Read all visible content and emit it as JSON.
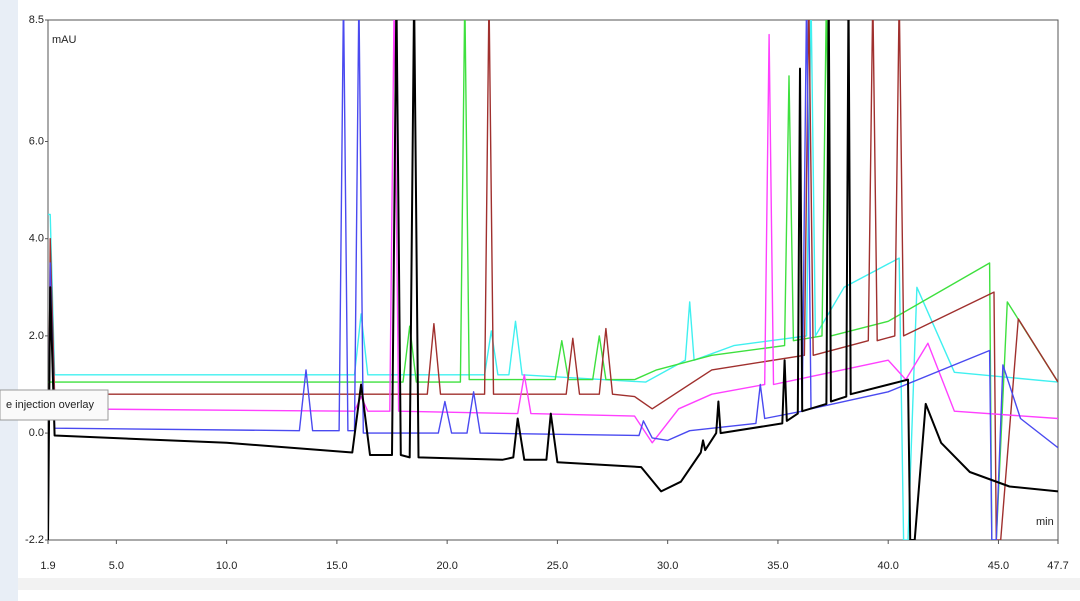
{
  "chart_data": {
    "type": "line",
    "y_label": "mAU",
    "x_label": "min",
    "tooltip": "e injection overlay",
    "xlim": [
      1.9,
      47.7
    ],
    "ylim": [
      -2.2,
      8.5
    ],
    "xticks": [
      1.9,
      {
        "value": 5,
        "label": "5.0"
      },
      {
        "value": 10,
        "label": "10.0"
      },
      {
        "value": 15,
        "label": "15.0"
      },
      {
        "value": 20,
        "label": "20.0"
      },
      {
        "value": 25,
        "label": "25.0"
      },
      {
        "value": 30,
        "label": "30.0"
      },
      {
        "value": 35,
        "label": "35.0"
      },
      {
        "value": 40,
        "label": "40.0"
      },
      {
        "value": 45,
        "label": "45.0"
      },
      47.7
    ],
    "yticks": [
      -2.2,
      {
        "value": 0,
        "label": "0.0"
      },
      {
        "value": 2,
        "label": "2.0"
      },
      {
        "value": 4,
        "label": "4.0"
      },
      {
        "value": 6,
        "label": "6.0"
      },
      8.5
    ],
    "series": [
      {
        "color": "#40f0f0",
        "x": [
          1.9,
          2.0,
          2.2,
          15.8,
          16.1,
          16.4,
          21.7,
          22.0,
          22.3,
          22.8,
          23.1,
          23.4,
          29.0,
          30.8,
          31.0,
          31.2,
          33.0,
          36.3,
          36.5,
          36.7,
          38.0,
          40.5,
          40.7,
          40.9,
          41.3,
          43.0,
          47.7
        ],
        "values": [
          4.5,
          4.5,
          1.2,
          1.2,
          2.45,
          1.2,
          1.2,
          2.1,
          1.2,
          1.2,
          2.3,
          1.2,
          1.05,
          1.5,
          2.7,
          1.5,
          1.8,
          2.0,
          9,
          2.0,
          3.0,
          3.6,
          -2.2,
          -2.2,
          3.0,
          1.25,
          1.05
        ]
      },
      {
        "color": "#3ee03e",
        "x": [
          1.9,
          2.2,
          18.0,
          18.3,
          18.6,
          20.6,
          20.8,
          21.0,
          24.9,
          25.2,
          25.5,
          26.6,
          26.9,
          27.2,
          28.5,
          29.5,
          32.0,
          35.3,
          35.5,
          35.7,
          37.0,
          37.2,
          37.4,
          40.0,
          44.6,
          44.7,
          44.9,
          45.4,
          47.7
        ],
        "values": [
          1.05,
          1.05,
          1.05,
          2.2,
          1.05,
          1.05,
          9,
          1.1,
          1.1,
          1.9,
          1.1,
          1.1,
          2.0,
          1.1,
          1.1,
          1.3,
          1.6,
          1.8,
          7.35,
          1.9,
          2.0,
          9,
          2.0,
          2.3,
          3.5,
          -2.2,
          -2.2,
          2.7,
          1.05
        ]
      },
      {
        "color": "#a0302e",
        "x": [
          1.9,
          2.0,
          2.2,
          19.1,
          19.4,
          19.7,
          21.7,
          21.9,
          22.1,
          25.4,
          25.7,
          26.0,
          26.9,
          27.2,
          27.5,
          28.5,
          29.3,
          32.0,
          36.2,
          36.4,
          36.6,
          39.1,
          39.3,
          39.5,
          40.3,
          40.5,
          40.7,
          44.8,
          44.9,
          45.1,
          45.9,
          47.7
        ],
        "values": [
          -2.2,
          4.0,
          0.8,
          0.8,
          2.25,
          0.8,
          0.8,
          9,
          0.8,
          0.8,
          1.95,
          0.8,
          0.8,
          2.15,
          0.8,
          0.75,
          0.5,
          1.3,
          1.6,
          9,
          1.6,
          1.9,
          9,
          1.9,
          2.0,
          9,
          2.0,
          2.9,
          -2.2,
          -2.2,
          2.35,
          1.05
        ]
      },
      {
        "color": "#ff40ff",
        "x": [
          1.9,
          2.2,
          15.8,
          16.1,
          16.4,
          17.4,
          17.6,
          17.8,
          23.2,
          23.5,
          23.8,
          28.5,
          29.3,
          30.5,
          32.0,
          34.4,
          34.6,
          34.8,
          40.0,
          40.8,
          41.8,
          43.0,
          47.7
        ],
        "values": [
          0.5,
          0.5,
          0.45,
          0.75,
          0.45,
          0.45,
          9,
          0.45,
          0.4,
          1.2,
          0.4,
          0.35,
          -0.2,
          0.5,
          0.8,
          1.0,
          8.2,
          1.0,
          1.5,
          1.1,
          1.85,
          0.45,
          0.3
        ]
      },
      {
        "color": "#4a4af0",
        "x": [
          1.9,
          2.0,
          2.2,
          13.3,
          13.6,
          13.9,
          15.1,
          15.3,
          15.5,
          15.8,
          16.0,
          16.2,
          19.6,
          19.9,
          20.2,
          20.9,
          21.2,
          21.5,
          28.7,
          28.9,
          29.3,
          30.0,
          31.0,
          34.0,
          34.2,
          34.4,
          36.1,
          36.3,
          36.5,
          40.0,
          44.6,
          44.7,
          44.9,
          45.2,
          46.0,
          47.7
        ],
        "values": [
          -2.2,
          3.5,
          0.1,
          0.05,
          1.3,
          0.05,
          0.05,
          9,
          0.05,
          0.05,
          9,
          0.0,
          0.0,
          0.65,
          0.0,
          0.0,
          0.85,
          0.0,
          -0.05,
          0.25,
          -0.1,
          -0.15,
          0.05,
          0.2,
          1.0,
          0.3,
          0.45,
          9,
          0.5,
          0.85,
          1.7,
          -2.2,
          -2.2,
          1.4,
          0.3,
          -0.3
        ]
      },
      {
        "color": "#000000",
        "x": [
          1.9,
          2.0,
          2.2,
          10,
          15.7,
          16.1,
          16.5,
          17.5,
          17.7,
          17.9,
          18.3,
          18.5,
          18.7,
          22.5,
          23.0,
          23.2,
          23.5,
          24.5,
          24.7,
          25.0,
          28.8,
          29.7,
          30.6,
          31.5,
          31.6,
          31.7,
          32.2,
          32.3,
          32.4,
          35.2,
          35.3,
          35.4,
          35.9,
          36.0,
          36.1,
          37.2,
          37.3,
          37.4,
          38.1,
          38.2,
          38.3,
          40.9,
          41.0,
          41.2,
          41.7,
          42.4,
          43.7,
          45.5,
          47.7
        ],
        "values": [
          -2.2,
          3.0,
          -0.05,
          -0.2,
          -0.4,
          1.0,
          -0.45,
          -0.45,
          9,
          -0.45,
          -0.5,
          9,
          -0.5,
          -0.55,
          -0.5,
          0.3,
          -0.55,
          -0.55,
          0.4,
          -0.6,
          -0.7,
          -1.2,
          -1.0,
          -0.4,
          -0.15,
          -0.35,
          0.0,
          0.65,
          0.0,
          0.2,
          1.5,
          0.25,
          0.4,
          7.5,
          0.45,
          0.6,
          9,
          0.65,
          0.75,
          9,
          0.8,
          1.1,
          -2.2,
          -2.2,
          0.6,
          -0.2,
          -0.8,
          -1.1,
          -1.2
        ]
      }
    ]
  }
}
